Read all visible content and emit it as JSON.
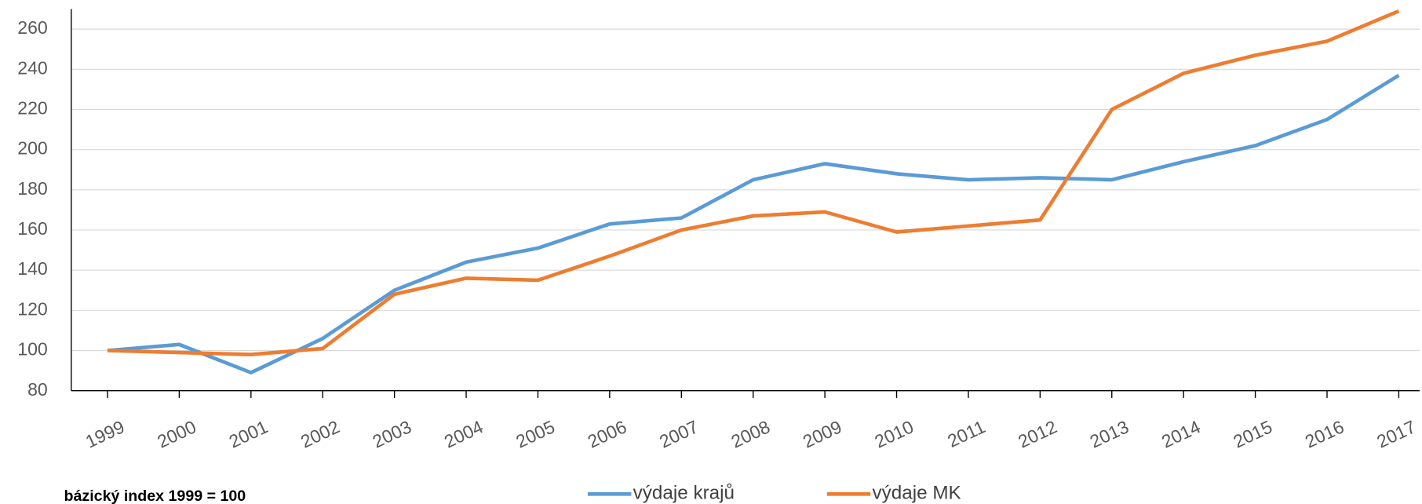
{
  "chart_data": {
    "type": "line",
    "categories": [
      "1999",
      "2000",
      "2001",
      "2002",
      "2003",
      "2004",
      "2005",
      "2006",
      "2007",
      "2008",
      "2009",
      "2010",
      "2011",
      "2012",
      "2013",
      "2014",
      "2015",
      "2016",
      "2017"
    ],
    "series": [
      {
        "name": "výdaje krajů",
        "color": "#5b9bd5",
        "values": [
          100,
          103,
          89,
          106,
          130,
          144,
          151,
          163,
          166,
          185,
          193,
          188,
          185,
          186,
          185,
          194,
          202,
          215,
          237
        ]
      },
      {
        "name": "výdaje MK",
        "color": "#ed7d31",
        "values": [
          100,
          99,
          98,
          101,
          128,
          136,
          135,
          147,
          160,
          167,
          169,
          159,
          162,
          165,
          220,
          238,
          247,
          254,
          269
        ]
      }
    ],
    "ylim": [
      80,
      270
    ],
    "yticks": [
      80,
      100,
      120,
      140,
      160,
      180,
      200,
      220,
      240,
      260
    ],
    "grid": true,
    "annotation": "bázický index 1999 = 100",
    "legend": "bottom"
  }
}
